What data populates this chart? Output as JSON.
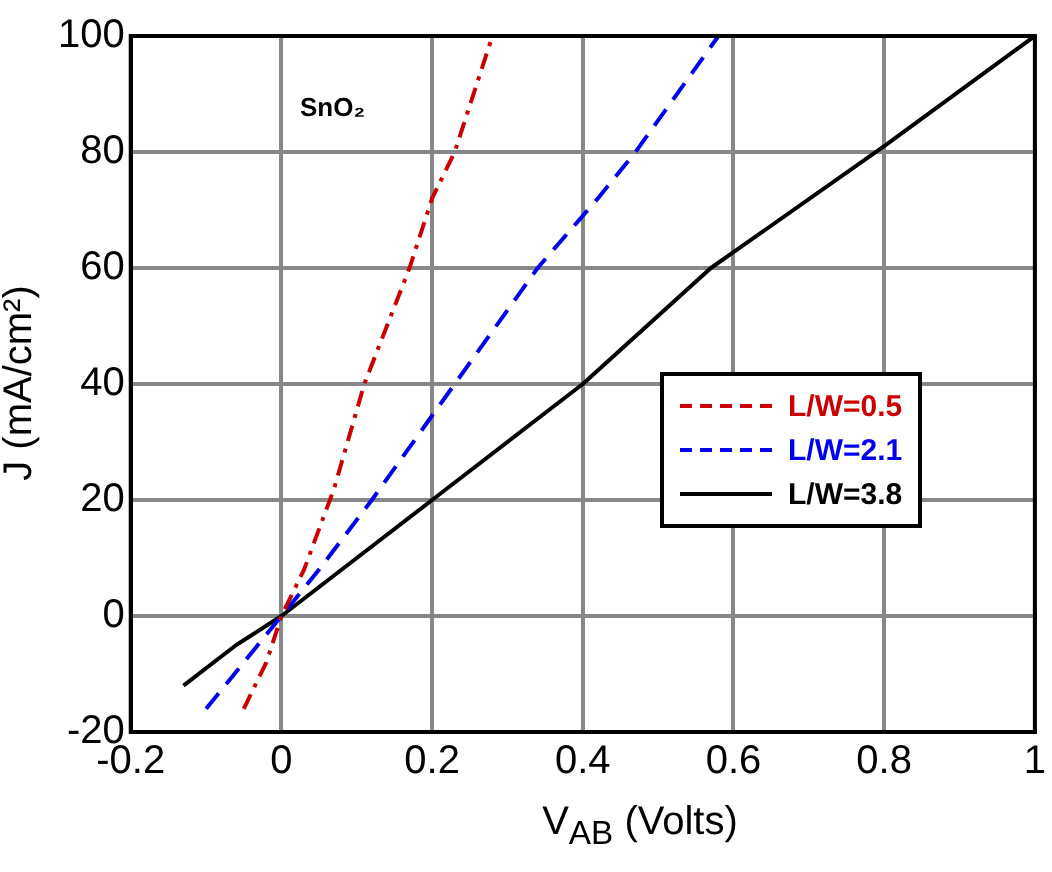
{
  "chart_data": {
    "type": "line",
    "xlabel": "V$_{AB}$ (Volts)",
    "ylabel": "J (mA/cm²)",
    "annotations": [
      "SnO₂"
    ],
    "xlim": [
      -0.2,
      1
    ],
    "ylim": [
      -20,
      100
    ],
    "xticks": [
      -0.2,
      0,
      0.2,
      0.4,
      0.6,
      0.8,
      1
    ],
    "yticks": [
      -20,
      0,
      20,
      40,
      60,
      80,
      100
    ],
    "grid": true,
    "legend": "right",
    "marker": "none",
    "series": [
      {
        "name": "L/W=0.5",
        "color": "#cc0000",
        "line_style": "dashdot",
        "x": [
          -0.05,
          -0.02,
          0,
          0.03,
          0.07,
          0.11,
          0.17,
          0.2,
          0.23,
          0.28
        ],
        "values": [
          -16,
          -8,
          0,
          8,
          22,
          40,
          60,
          72,
          80,
          100
        ]
      },
      {
        "name": "L/W=2.1",
        "color": "#0000ee",
        "line_style": "dashed",
        "x": [
          -0.1,
          -0.05,
          0,
          0.05,
          0.12,
          0.23,
          0.34,
          0.42,
          0.47,
          0.58
        ],
        "values": [
          -16,
          -8,
          0,
          8,
          20,
          40,
          60,
          72,
          80,
          100
        ]
      },
      {
        "name": "L/W=3.8",
        "color": "#000000",
        "line_style": "solid",
        "x": [
          -0.13,
          -0.06,
          0,
          0.1,
          0.2,
          0.4,
          0.57,
          0.8,
          1
        ],
        "values": [
          -12,
          -5,
          0,
          10,
          20,
          40,
          60,
          81,
          100
        ]
      }
    ]
  }
}
